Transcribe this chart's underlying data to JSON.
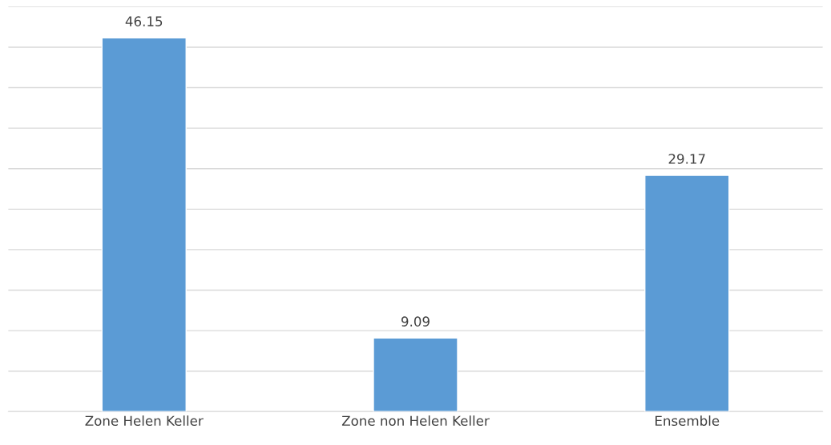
{
  "chart_data": {
    "type": "bar",
    "categories": [
      "Zone Helen Keller",
      "Zone non Helen Keller",
      "Ensemble"
    ],
    "values": [
      46.15,
      9.09,
      29.17
    ],
    "color": "#5b9bd5",
    "ylim": [
      0,
      50
    ],
    "yticks": [
      {
        "value": 0,
        "label": null
      },
      {
        "value": 5,
        "label": null
      },
      {
        "value": 10,
        "label": null
      },
      {
        "value": 15,
        "label": null
      },
      {
        "value": 20,
        "label": null
      },
      {
        "value": 25,
        "label": null
      },
      {
        "value": 30,
        "label": null
      },
      {
        "value": 35,
        "label": null
      },
      {
        "value": 40,
        "label": null
      },
      {
        "value": 45,
        "label": null
      },
      {
        "value": 50,
        "label": null
      }
    ],
    "tick_labels": "x",
    "grid": "y",
    "data_labels": true
  }
}
